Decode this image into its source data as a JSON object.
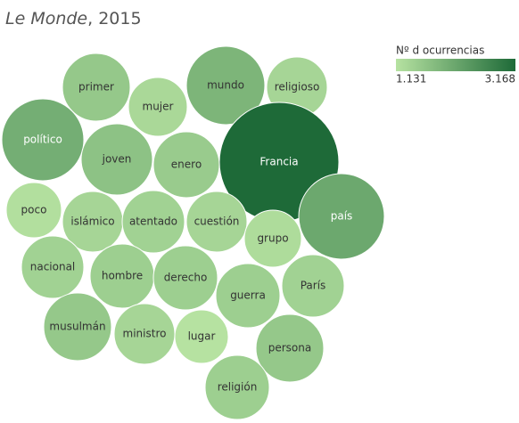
{
  "chart_data": {
    "type": "bubble",
    "title": {
      "italic": "Le Monde",
      "rest": ", 2015"
    },
    "legend_title": "Nº d ocurrencias",
    "legend_ticks": [
      {
        "value": 1131,
        "label": "1.131"
      },
      {
        "value": 3168,
        "label": "3.168"
      }
    ],
    "colors": [
      "#b6e2a1",
      "#1e6a38"
    ],
    "categories": [
      "primer",
      "mundo",
      "religioso",
      "mujer",
      "político",
      "joven",
      "enero",
      "Francia",
      "poco",
      "islámico",
      "atentado",
      "cuestión",
      "grupo",
      "país",
      "nacional",
      "hombre",
      "derecho",
      "guerra",
      "París",
      "musulmán",
      "ministro",
      "lugar",
      "persona",
      "religión"
    ],
    "values": [
      1571,
      1901,
      1351,
      1296,
      2012,
      1682,
      1516,
      3168,
      1186,
      1351,
      1406,
      1351,
      1241,
      2122,
      1406,
      1461,
      1461,
      1461,
      1406,
      1571,
      1351,
      1131,
      1571,
      1461
    ]
  }
}
